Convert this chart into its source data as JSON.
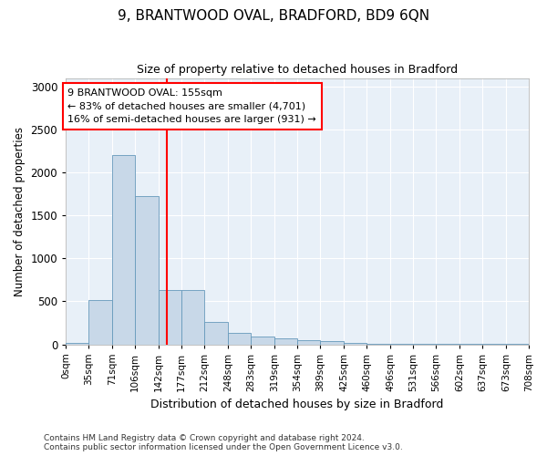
{
  "title": "9, BRANTWOOD OVAL, BRADFORD, BD9 6QN",
  "subtitle": "Size of property relative to detached houses in Bradford",
  "xlabel": "Distribution of detached houses by size in Bradford",
  "ylabel": "Number of detached properties",
  "bar_color": "#c8d8e8",
  "bar_edge_color": "#6699bb",
  "background_color": "#e8f0f8",
  "grid_color": "#ffffff",
  "red_line_x": 155,
  "annotation_title": "9 BRANTWOOD OVAL: 155sqm",
  "annotation_line1": "← 83% of detached houses are smaller (4,701)",
  "annotation_line2": "16% of semi-detached houses are larger (931) →",
  "footer_line1": "Contains HM Land Registry data © Crown copyright and database right 2024.",
  "footer_line2": "Contains public sector information licensed under the Open Government Licence v3.0.",
  "bin_edges": [
    0,
    35,
    71,
    106,
    142,
    177,
    212,
    248,
    283,
    319,
    354,
    389,
    425,
    460,
    496,
    531,
    566,
    602,
    637,
    673,
    708
  ],
  "bin_labels": [
    "0sqm",
    "35sqm",
    "71sqm",
    "106sqm",
    "142sqm",
    "177sqm",
    "212sqm",
    "248sqm",
    "283sqm",
    "319sqm",
    "354sqm",
    "389sqm",
    "425sqm",
    "460sqm",
    "496sqm",
    "531sqm",
    "566sqm",
    "602sqm",
    "637sqm",
    "673sqm",
    "708sqm"
  ],
  "bar_heights": [
    20,
    510,
    2200,
    1730,
    630,
    630,
    260,
    135,
    90,
    65,
    50,
    40,
    20,
    10,
    5,
    3,
    2,
    2,
    2,
    2
  ],
  "ylim": [
    0,
    3100
  ],
  "yticks": [
    0,
    500,
    1000,
    1500,
    2000,
    2500,
    3000
  ]
}
